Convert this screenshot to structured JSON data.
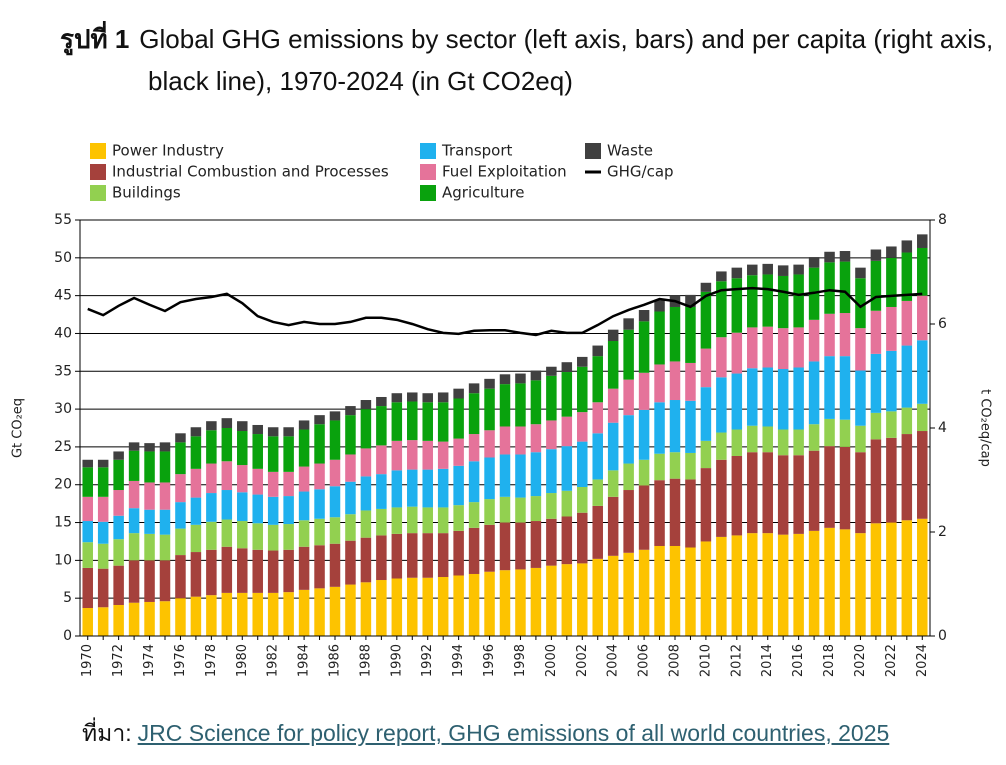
{
  "chart_data": {
    "type": "stacked_bar",
    "figure_label": "รูปที่ 1",
    "title": "Global GHG emissions by sector (left axis, bars) and per capita (right axis, black line), 1970-2024 (in Gt CO2eq)",
    "source_label": "ที่มา:",
    "source": "JRC Science for policy report, GHG emissions of all world countries, 2025",
    "y_label": "Gt CO₂eq",
    "y2_label": "t CO₂eq/cap",
    "categories": [
      "1970",
      null,
      "1972",
      null,
      "1974",
      null,
      "1976",
      null,
      "1978",
      null,
      "1980",
      null,
      "1982",
      null,
      "1984",
      null,
      "1986",
      null,
      "1988",
      null,
      "1990",
      null,
      "1992",
      null,
      "1994",
      null,
      "1996",
      null,
      "1998",
      null,
      "2000",
      null,
      "2002",
      null,
      "2004",
      null,
      "2006",
      null,
      "2008",
      null,
      "2010",
      null,
      "2012",
      null,
      "2014",
      null,
      "2016",
      null,
      "2018",
      null,
      "2020",
      null,
      "2022",
      null,
      "2024"
    ],
    "ylim": [
      0,
      55
    ],
    "yticks": [
      0,
      5,
      10,
      15,
      20,
      25,
      30,
      35,
      40,
      45,
      50,
      55
    ],
    "y2lim": [
      0,
      8
    ],
    "y2ticks": [
      0,
      2,
      4,
      6,
      8
    ],
    "grid": true,
    "legend": "top",
    "series": [
      {
        "name": "Power Industry",
        "color": "#fdc300",
        "values": [
          3.7,
          3.8,
          4.1,
          4.4,
          4.5,
          4.6,
          5.0,
          5.2,
          5.4,
          5.7,
          5.7,
          5.7,
          5.7,
          5.8,
          6.1,
          6.3,
          6.5,
          6.8,
          7.1,
          7.4,
          7.6,
          7.7,
          7.7,
          7.8,
          8.0,
          8.2,
          8.5,
          8.7,
          8.8,
          9.0,
          9.3,
          9.5,
          9.6,
          10.2,
          10.6,
          11.0,
          11.4,
          11.9,
          11.9,
          11.7,
          12.5,
          13.1,
          13.3,
          13.6,
          13.6,
          13.4,
          13.5,
          13.9,
          14.3,
          14.1,
          13.6,
          14.9,
          15.0,
          15.3,
          15.5
        ]
      },
      {
        "name": "Industrial Combustion and Processes",
        "color": "#a5413c",
        "values": [
          5.3,
          5.1,
          5.2,
          5.6,
          5.5,
          5.4,
          5.7,
          5.9,
          6.0,
          6.1,
          5.9,
          5.7,
          5.6,
          5.6,
          5.7,
          5.7,
          5.7,
          5.8,
          5.9,
          5.9,
          5.9,
          5.9,
          5.9,
          5.8,
          5.9,
          6.1,
          6.2,
          6.3,
          6.2,
          6.2,
          6.2,
          6.3,
          6.7,
          7.0,
          7.8,
          8.3,
          8.5,
          8.7,
          8.9,
          9.0,
          9.7,
          10.2,
          10.5,
          10.7,
          10.7,
          10.5,
          10.4,
          10.6,
          10.8,
          10.9,
          10.7,
          11.1,
          11.2,
          11.4,
          11.6
        ]
      },
      {
        "name": "Buildings",
        "color": "#92d050",
        "values": [
          3.4,
          3.3,
          3.5,
          3.6,
          3.5,
          3.4,
          3.5,
          3.6,
          3.7,
          3.6,
          3.6,
          3.5,
          3.4,
          3.4,
          3.5,
          3.5,
          3.5,
          3.5,
          3.6,
          3.5,
          3.5,
          3.5,
          3.4,
          3.4,
          3.4,
          3.4,
          3.4,
          3.4,
          3.3,
          3.3,
          3.4,
          3.4,
          3.4,
          3.5,
          3.5,
          3.5,
          3.4,
          3.5,
          3.5,
          3.5,
          3.6,
          3.6,
          3.5,
          3.5,
          3.4,
          3.4,
          3.4,
          3.5,
          3.6,
          3.6,
          3.5,
          3.5,
          3.5,
          3.5,
          3.6
        ]
      },
      {
        "name": "Transport",
        "color": "#1fb1ee",
        "values": [
          2.8,
          2.9,
          3.1,
          3.3,
          3.2,
          3.3,
          3.5,
          3.6,
          3.8,
          3.9,
          3.8,
          3.8,
          3.7,
          3.7,
          3.8,
          3.9,
          4.1,
          4.3,
          4.5,
          4.6,
          4.9,
          4.9,
          5.0,
          5.1,
          5.2,
          5.4,
          5.5,
          5.6,
          5.7,
          5.8,
          5.8,
          5.9,
          6.0,
          6.1,
          6.3,
          6.4,
          6.6,
          6.8,
          6.9,
          6.9,
          7.1,
          7.3,
          7.4,
          7.6,
          7.8,
          8.0,
          8.2,
          8.3,
          8.3,
          8.4,
          7.3,
          7.8,
          8.0,
          8.2,
          8.4
        ]
      },
      {
        "name": "Fuel Exploitation",
        "color": "#e5739a",
        "values": [
          3.2,
          3.3,
          3.4,
          3.6,
          3.6,
          3.6,
          3.7,
          3.8,
          3.9,
          3.8,
          3.6,
          3.4,
          3.3,
          3.2,
          3.3,
          3.4,
          3.5,
          3.6,
          3.7,
          3.8,
          3.9,
          3.9,
          3.8,
          3.6,
          3.6,
          3.6,
          3.6,
          3.7,
          3.7,
          3.7,
          3.8,
          3.9,
          3.9,
          4.1,
          4.5,
          4.7,
          4.9,
          5.0,
          5.1,
          5.0,
          5.1,
          5.3,
          5.4,
          5.4,
          5.4,
          5.4,
          5.3,
          5.5,
          5.6,
          5.7,
          5.6,
          5.7,
          5.8,
          5.9,
          5.9
        ]
      },
      {
        "name": "Agriculture",
        "color": "#09a20d",
        "values": [
          3.9,
          3.9,
          4.0,
          4.0,
          4.1,
          4.1,
          4.2,
          4.3,
          4.4,
          4.4,
          4.5,
          4.6,
          4.7,
          4.7,
          4.9,
          5.2,
          5.2,
          5.2,
          5.2,
          5.2,
          5.1,
          5.1,
          5.1,
          5.2,
          5.3,
          5.4,
          5.5,
          5.6,
          5.7,
          5.8,
          5.9,
          5.9,
          6.0,
          6.1,
          6.3,
          6.6,
          6.8,
          7.0,
          7.2,
          7.4,
          7.5,
          7.4,
          7.2,
          6.9,
          6.9,
          6.9,
          7.0,
          6.9,
          6.8,
          6.8,
          6.6,
          6.6,
          6.5,
          6.4,
          6.3
        ]
      },
      {
        "name": "Waste",
        "color": "#404040",
        "values": [
          1.0,
          1.0,
          1.1,
          1.1,
          1.1,
          1.2,
          1.2,
          1.2,
          1.2,
          1.3,
          1.3,
          1.2,
          1.2,
          1.2,
          1.2,
          1.2,
          1.2,
          1.2,
          1.2,
          1.2,
          1.2,
          1.2,
          1.2,
          1.3,
          1.3,
          1.3,
          1.3,
          1.3,
          1.3,
          1.3,
          1.2,
          1.3,
          1.3,
          1.4,
          1.5,
          1.5,
          1.5,
          1.5,
          1.5,
          1.6,
          1.2,
          1.3,
          1.4,
          1.4,
          1.4,
          1.4,
          1.3,
          1.4,
          1.4,
          1.4,
          1.4,
          1.5,
          1.5,
          1.6,
          1.8
        ]
      },
      {
        "name": "GHG/cap",
        "color": "#000000",
        "type": "line",
        "axis": "y2",
        "values": [
          6.29,
          6.17,
          6.35,
          6.5,
          6.37,
          6.25,
          6.42,
          6.48,
          6.52,
          6.58,
          6.4,
          6.15,
          6.04,
          5.98,
          6.04,
          6.0,
          6.0,
          6.04,
          6.12,
          6.12,
          6.08,
          6.0,
          5.9,
          5.83,
          5.81,
          5.87,
          5.88,
          5.88,
          5.83,
          5.79,
          5.87,
          5.83,
          5.83,
          5.98,
          6.15,
          6.27,
          6.37,
          6.48,
          6.44,
          6.33,
          6.54,
          6.65,
          6.67,
          6.69,
          6.67,
          6.62,
          6.56,
          6.6,
          6.65,
          6.62,
          6.33,
          6.52,
          6.54,
          6.56,
          6.58
        ]
      }
    ]
  }
}
